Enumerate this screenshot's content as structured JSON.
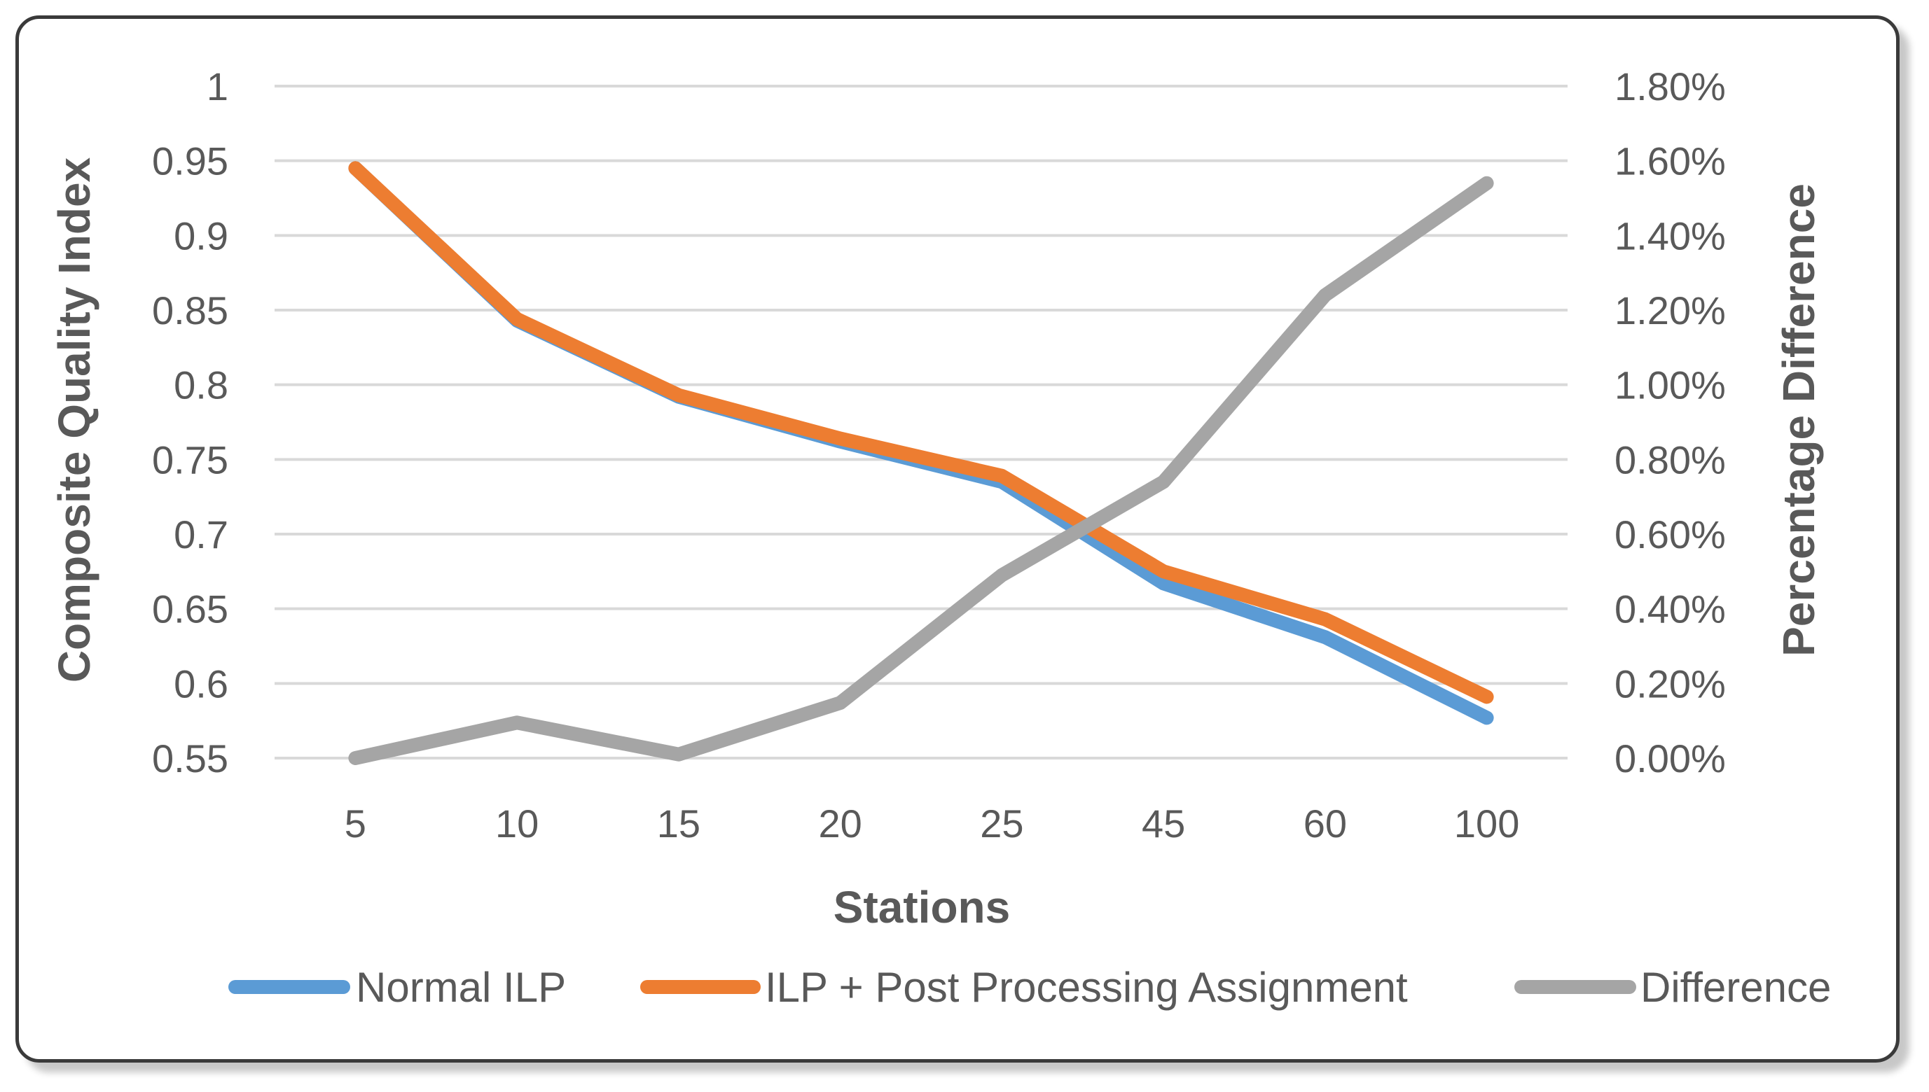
{
  "chart_data": {
    "type": "line",
    "categories": [
      "5",
      "10",
      "15",
      "20",
      "25",
      "45",
      "60",
      "100"
    ],
    "xlabel": "Stations",
    "ylabel": "Composite Quality Index",
    "y2label": "Percentage Difference",
    "ylim": [
      0.55,
      1
    ],
    "yticks": [
      "0.55",
      "0.6",
      "0.65",
      "0.7",
      "0.75",
      "0.8",
      "0.85",
      "0.9",
      "0.95",
      "1"
    ],
    "y2lim": [
      0,
      0.018
    ],
    "y2ticks": [
      "0.00%",
      "0.20%",
      "0.40%",
      "0.60%",
      "0.80%",
      "1.00%",
      "1.20%",
      "1.40%",
      "1.60%",
      "1.80%"
    ],
    "grid": true,
    "legend_position": "bottom",
    "series": [
      {
        "name": "Normal ILP",
        "axis": "left",
        "color": "#5b9bd5",
        "values": [
          0.945,
          0.843,
          0.792,
          0.762,
          0.735,
          0.667,
          0.631,
          0.577
        ]
      },
      {
        "name": "ILP + Post Processing Assignment",
        "axis": "left",
        "color": "#ed7d31",
        "values": [
          0.945,
          0.844,
          0.793,
          0.764,
          0.739,
          0.675,
          0.643,
          0.591
        ]
      },
      {
        "name": "Difference",
        "axis": "right",
        "color": "#a5a5a5",
        "values": [
          0.0,
          0.00095,
          0.0001,
          0.00148,
          0.0049,
          0.0074,
          0.0124,
          0.0154
        ]
      }
    ]
  }
}
